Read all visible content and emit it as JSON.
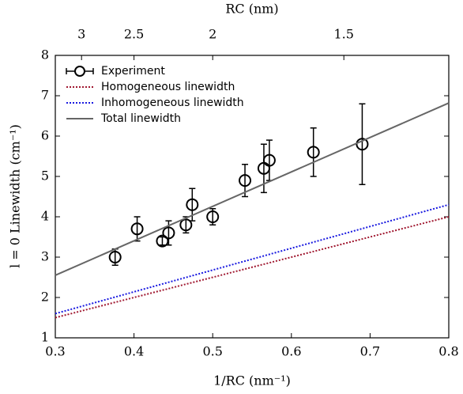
{
  "chart_data": {
    "type": "line",
    "xlabel": "1/RC (nm⁻¹)",
    "ylabel": "l = 0 Linewidth (cm⁻¹)",
    "x2label": "RC (nm)",
    "xlim": [
      0.3,
      0.8
    ],
    "xticks": [
      0.3,
      0.4,
      0.5,
      0.6,
      0.7,
      0.8
    ],
    "ylim": [
      1,
      8
    ],
    "yticks": [
      1,
      2,
      3,
      4,
      5,
      6,
      7,
      8
    ],
    "x2ticks": [
      3,
      2.5,
      2,
      1.5
    ],
    "legend": "upper-left",
    "series": [
      {
        "name": "Experiment",
        "color": "#000000",
        "style": "errorbar",
        "x": [
          0.376,
          0.404,
          0.436,
          0.444,
          0.466,
          0.474,
          0.5,
          0.541,
          0.565,
          0.572,
          0.628,
          0.69
        ],
        "values": [
          3.0,
          3.7,
          3.4,
          3.6,
          3.8,
          4.3,
          4.0,
          4.9,
          5.2,
          5.4,
          5.6,
          5.8
        ],
        "errors": [
          0.2,
          0.3,
          0.1,
          0.3,
          0.2,
          0.4,
          0.2,
          0.4,
          0.6,
          0.5,
          0.6,
          1.0
        ]
      },
      {
        "name": "Homogeneous linewidth",
        "color": "#a01830",
        "style": "dotted",
        "x": [
          0.3,
          0.8
        ],
        "values": [
          1.5,
          4.0
        ]
      },
      {
        "name": "Inhomogeneous linewidth",
        "color": "#1a1ae0",
        "style": "dotted",
        "x": [
          0.3,
          0.8
        ],
        "values": [
          1.6,
          4.3
        ]
      },
      {
        "name": "Total linewidth",
        "color": "#666666",
        "style": "solid",
        "x": [
          0.3,
          0.8
        ],
        "values": [
          2.55,
          6.82
        ]
      }
    ]
  }
}
